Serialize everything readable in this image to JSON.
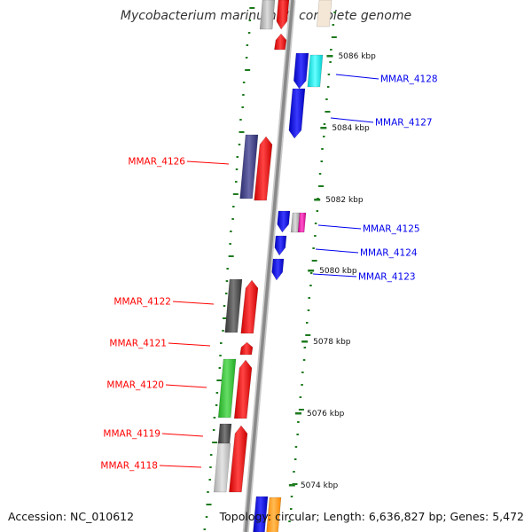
{
  "title": "Mycobacterium marinum M, complete genome",
  "footer": {
    "accession": "Accession: NC_010612",
    "topology": "Topology: circular; Length: 6,636,827 bp; Genes: 5,472"
  },
  "colors": {
    "forward": "#ff0000",
    "reverse": "#0000ee",
    "backbone": "#8a8a8a",
    "dots": "#1e7a1e"
  },
  "kbp_ticks": [
    {
      "label": "5086 kbp"
    },
    {
      "label": "5084 kbp"
    },
    {
      "label": "5082 kbp"
    },
    {
      "label": "5080 kbp"
    },
    {
      "label": "5078 kbp"
    },
    {
      "label": "5076 kbp"
    },
    {
      "label": "5074 kbp"
    }
  ],
  "left_labels": [
    {
      "text": "MMAR_4126"
    },
    {
      "text": "MMAR_4122"
    },
    {
      "text": "MMAR_4121"
    },
    {
      "text": "MMAR_4120"
    },
    {
      "text": "MMAR_4119"
    },
    {
      "text": "MMAR_4118"
    }
  ],
  "right_labels": [
    {
      "text": "MMAR_4128"
    },
    {
      "text": "MMAR_4127"
    },
    {
      "text": "MMAR_4125"
    },
    {
      "text": "MMAR_4124"
    },
    {
      "text": "MMAR_4123"
    }
  ]
}
